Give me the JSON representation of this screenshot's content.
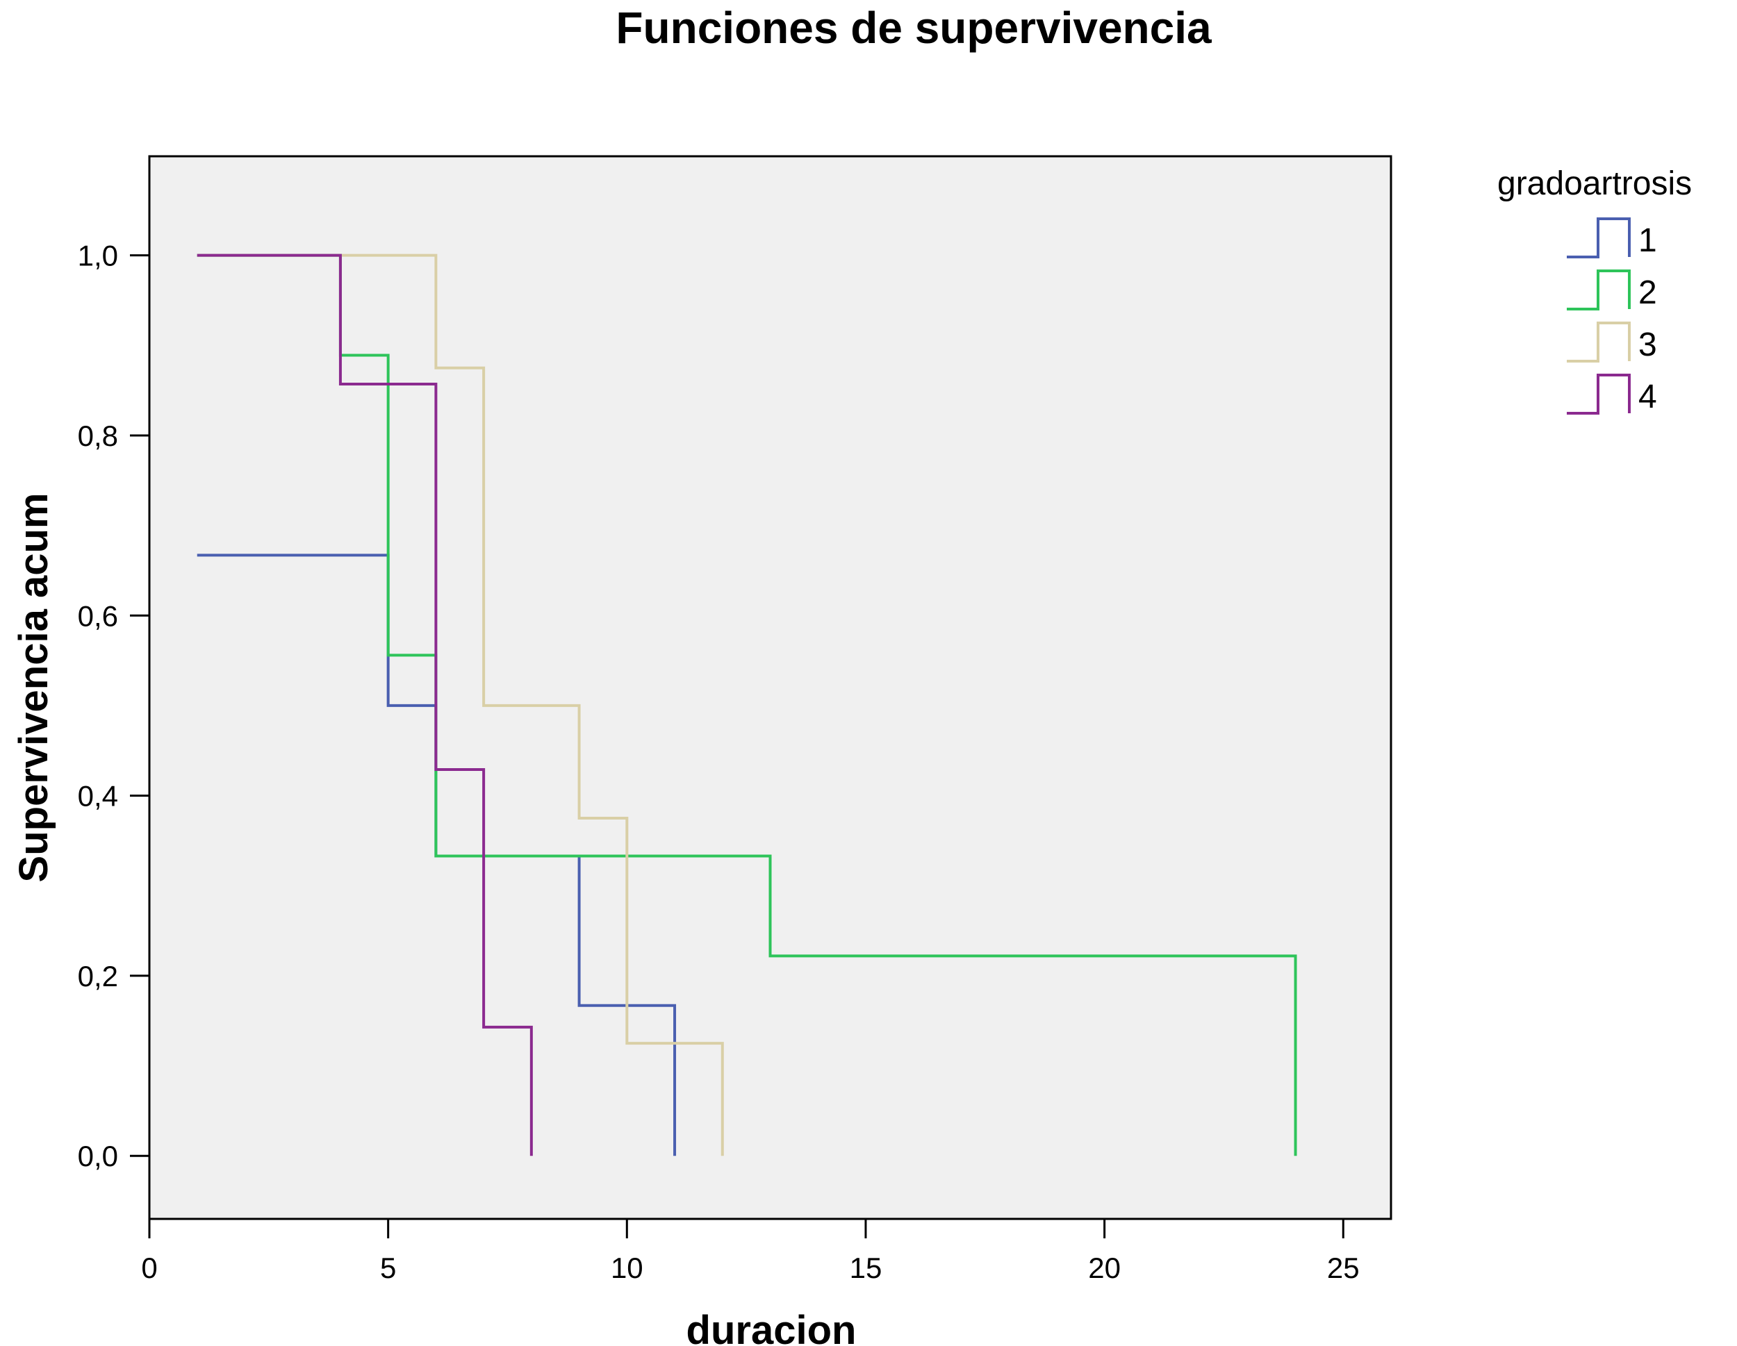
{
  "chart_data": {
    "type": "line",
    "step": true,
    "title": "Funciones de supervivencia",
    "xlabel": "duracion",
    "ylabel": "Supervivencia acum",
    "xlim": [
      0,
      26
    ],
    "ylim": [
      -0.07,
      1.11
    ],
    "x_ticks": [
      0,
      5,
      10,
      15,
      20,
      25
    ],
    "x_tick_labels": [
      "0",
      "5",
      "10",
      "15",
      "20",
      "25"
    ],
    "y_ticks": [
      0.0,
      0.2,
      0.4,
      0.6,
      0.8,
      1.0
    ],
    "y_tick_labels": [
      "0,0",
      "0,2",
      "0,4",
      "0,6",
      "0,8",
      "1,0"
    ],
    "grid": false,
    "legend": {
      "title": "gradoartrosis",
      "position": "right"
    },
    "series": [
      {
        "name": "1",
        "color": "#4a5fb0",
        "x": [
          1,
          5,
          6,
          9,
          11,
          11
        ],
        "y": [
          0.667,
          0.5,
          0.333,
          0.167,
          0.0,
          0.0
        ]
      },
      {
        "name": "2",
        "color": "#2ec45a",
        "x": [
          1,
          4,
          5,
          6,
          13,
          24,
          24
        ],
        "y": [
          1.0,
          0.889,
          0.556,
          0.333,
          0.222,
          0.0,
          0.0
        ]
      },
      {
        "name": "3",
        "color": "#d9cfa6",
        "x": [
          1,
          6,
          7,
          9,
          10,
          12,
          12
        ],
        "y": [
          1.0,
          0.875,
          0.5,
          0.375,
          0.125,
          0.0,
          0.0
        ]
      },
      {
        "name": "4",
        "color": "#8b2a8f",
        "x": [
          1,
          4,
          6,
          7,
          8,
          8
        ],
        "y": [
          1.0,
          0.857,
          0.429,
          0.143,
          0.0,
          0.0
        ]
      }
    ]
  },
  "colors": {
    "plot_background": "#f0f0f0",
    "page_background": "#ffffff"
  }
}
